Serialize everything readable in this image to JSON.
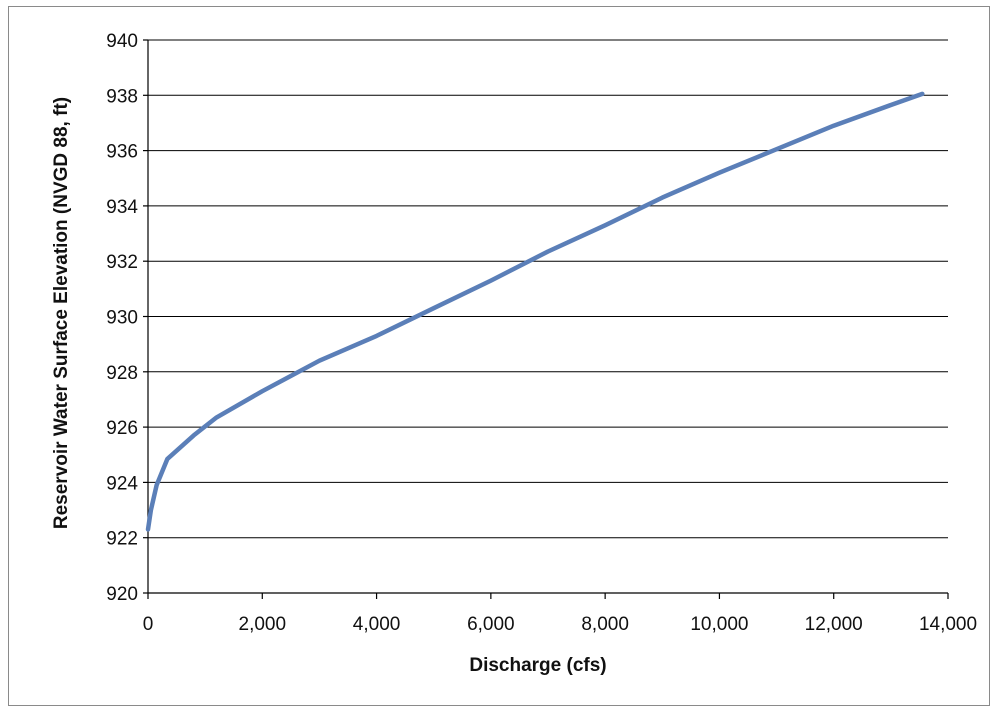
{
  "chart_data": {
    "type": "line",
    "title": "",
    "xlabel": "Discharge (cfs)",
    "ylabel": "Reservoir Water Surface Elevation (NVGD 88, ft)",
    "xlim": [
      0,
      14000
    ],
    "ylim": [
      920,
      940
    ],
    "x_ticks": [
      0,
      2000,
      4000,
      6000,
      8000,
      10000,
      12000,
      14000
    ],
    "x_tick_labels": [
      "0",
      "2,000",
      "4,000",
      "6,000",
      "8,000",
      "10,000",
      "12,000",
      "14,000"
    ],
    "y_ticks": [
      920,
      922,
      924,
      926,
      928,
      930,
      932,
      934,
      936,
      938,
      940
    ],
    "y_tick_labels": [
      "920",
      "922",
      "924",
      "926",
      "928",
      "930",
      "932",
      "934",
      "936",
      "938",
      "940"
    ],
    "grid": "horizontal",
    "series": [
      {
        "color": "#5b7fb8",
        "x": [
          0,
          50,
          150,
          340,
          800,
          1200,
          2000,
          3000,
          4000,
          5000,
          6000,
          7000,
          8000,
          9000,
          10000,
          11000,
          12000,
          13000,
          13550
        ],
        "y": [
          922.3,
          923.0,
          923.9,
          924.85,
          925.7,
          926.35,
          927.3,
          928.4,
          929.3,
          930.3,
          931.3,
          932.35,
          933.3,
          934.3,
          935.2,
          936.05,
          936.9,
          937.65,
          938.05
        ]
      }
    ]
  }
}
